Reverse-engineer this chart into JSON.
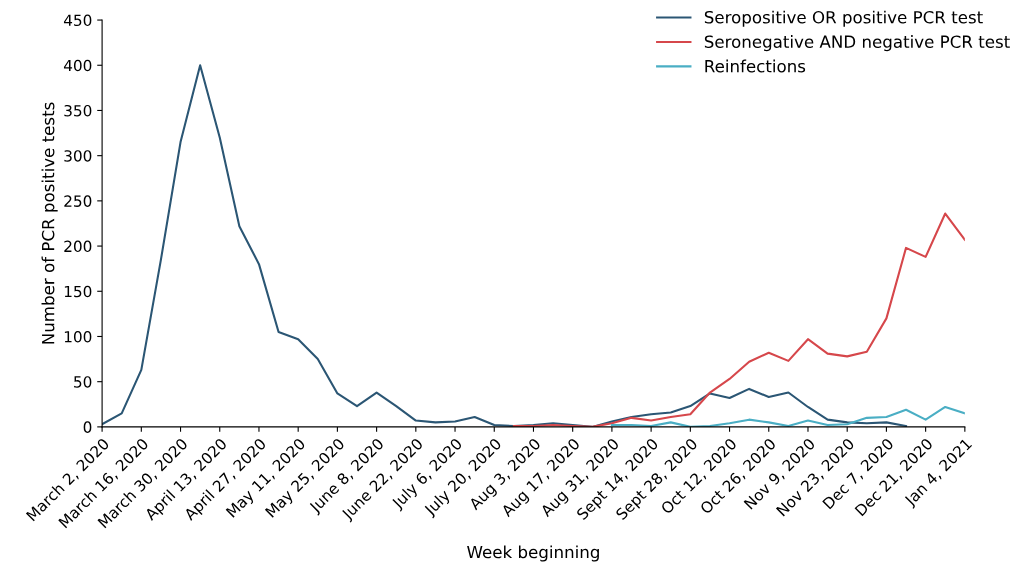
{
  "chart_data": {
    "type": "line",
    "xlabel": "Week beginning",
    "ylabel": "Number of PCR positive tests",
    "categories": [
      "March 2, 2020",
      null,
      "March 16, 2020",
      null,
      "March 30, 2020",
      null,
      "April 13, 2020",
      null,
      "April 27, 2020",
      null,
      "May 11, 2020",
      null,
      "May 25, 2020",
      null,
      "June 8, 2020",
      null,
      "June 22, 2020",
      null,
      "July 6, 2020",
      null,
      "July 20, 2020",
      null,
      "Aug 3, 2020",
      null,
      "Aug 17, 2020",
      null,
      "Aug 31, 2020",
      null,
      "Sept 14, 2020",
      null,
      "Sept 28, 2020",
      null,
      "Oct 12, 2020",
      null,
      "Oct 26, 2020",
      null,
      "Nov 9, 2020",
      null,
      "Nov 23, 2020",
      null,
      "Dec 7, 2020",
      null,
      "Dec 21, 2020",
      null,
      "Jan 4, 2021"
    ],
    "series": [
      {
        "name": "Seropositive OR positive PCR test",
        "color": "#2b5674",
        "values": [
          3,
          15,
          63,
          185,
          315,
          400,
          320,
          222,
          180,
          105,
          97,
          75,
          37,
          23,
          38,
          23,
          7,
          5,
          6,
          11,
          2,
          1,
          2,
          4,
          2,
          0,
          6,
          11,
          14,
          16,
          23,
          37,
          32,
          42,
          33,
          38,
          22,
          8,
          5,
          4,
          5,
          1,
          null,
          null,
          null
        ]
      },
      {
        "name": "Seronegative AND negative PCR test",
        "color": "#d6474b",
        "values": [
          null,
          null,
          null,
          null,
          null,
          null,
          null,
          null,
          null,
          null,
          null,
          null,
          null,
          null,
          null,
          null,
          null,
          null,
          null,
          null,
          null,
          1,
          1,
          2,
          1,
          0,
          4,
          10,
          7,
          11,
          14,
          38,
          53,
          72,
          82,
          73,
          97,
          81,
          78,
          83,
          120,
          198,
          188,
          236,
          207
        ]
      },
      {
        "name": "Reinfections",
        "color": "#4aaec4",
        "values": [
          null,
          null,
          null,
          null,
          null,
          null,
          null,
          null,
          null,
          null,
          null,
          null,
          null,
          null,
          null,
          null,
          null,
          null,
          null,
          null,
          null,
          null,
          null,
          null,
          null,
          null,
          2,
          2,
          1,
          5,
          0,
          1,
          4,
          8,
          5,
          1,
          7,
          2,
          3,
          10,
          11,
          19,
          8,
          22,
          15
        ]
      }
    ],
    "ylim": [
      0,
      450
    ],
    "yticks": [
      0,
      50,
      100,
      150,
      200,
      250,
      300,
      350,
      400,
      450
    ],
    "grid": false,
    "legend": "top right",
    "marker": "none",
    "line_style": "solid"
  }
}
